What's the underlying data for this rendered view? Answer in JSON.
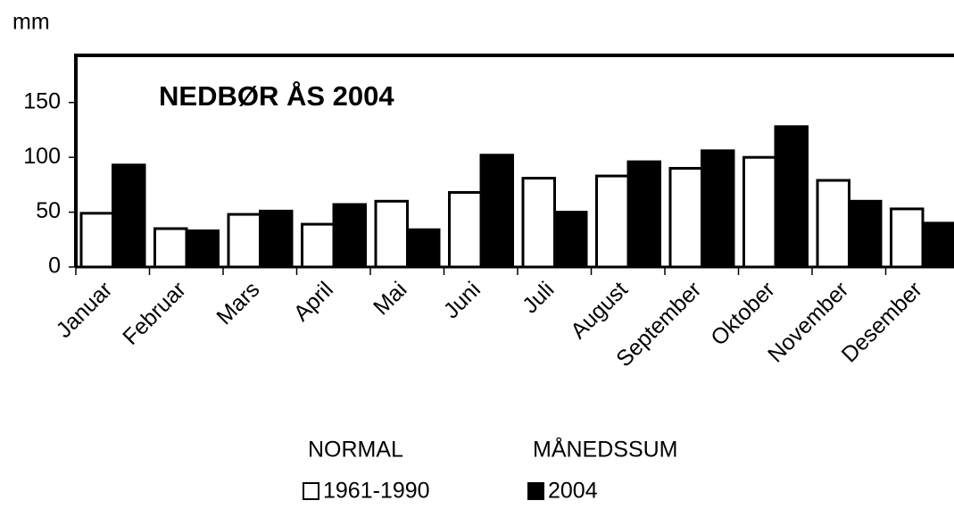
{
  "chart_data": {
    "type": "bar",
    "title": "NEDBØR ÅS 2004",
    "y_label": "mm",
    "categories": [
      "Januar",
      "Februar",
      "Mars",
      "April",
      "Mai",
      "Juni",
      "Juli",
      "August",
      "September",
      "Oktober",
      "November",
      "Desember"
    ],
    "series": [
      {
        "name": "1961-1990",
        "legend_heading": "NORMAL",
        "color": "#ffffff",
        "values": [
          49,
          35,
          48,
          39,
          60,
          68,
          81,
          83,
          90,
          100,
          79,
          53
        ]
      },
      {
        "name": "2004",
        "legend_heading": "MÅNEDSSUM",
        "color": "#000000",
        "values": [
          93,
          33,
          51,
          57,
          34,
          102,
          50,
          96,
          106,
          128,
          60,
          40
        ]
      }
    ],
    "ylim": [
      0,
      193
    ],
    "yticks": [
      0,
      50,
      100,
      150
    ],
    "grid": false
  }
}
